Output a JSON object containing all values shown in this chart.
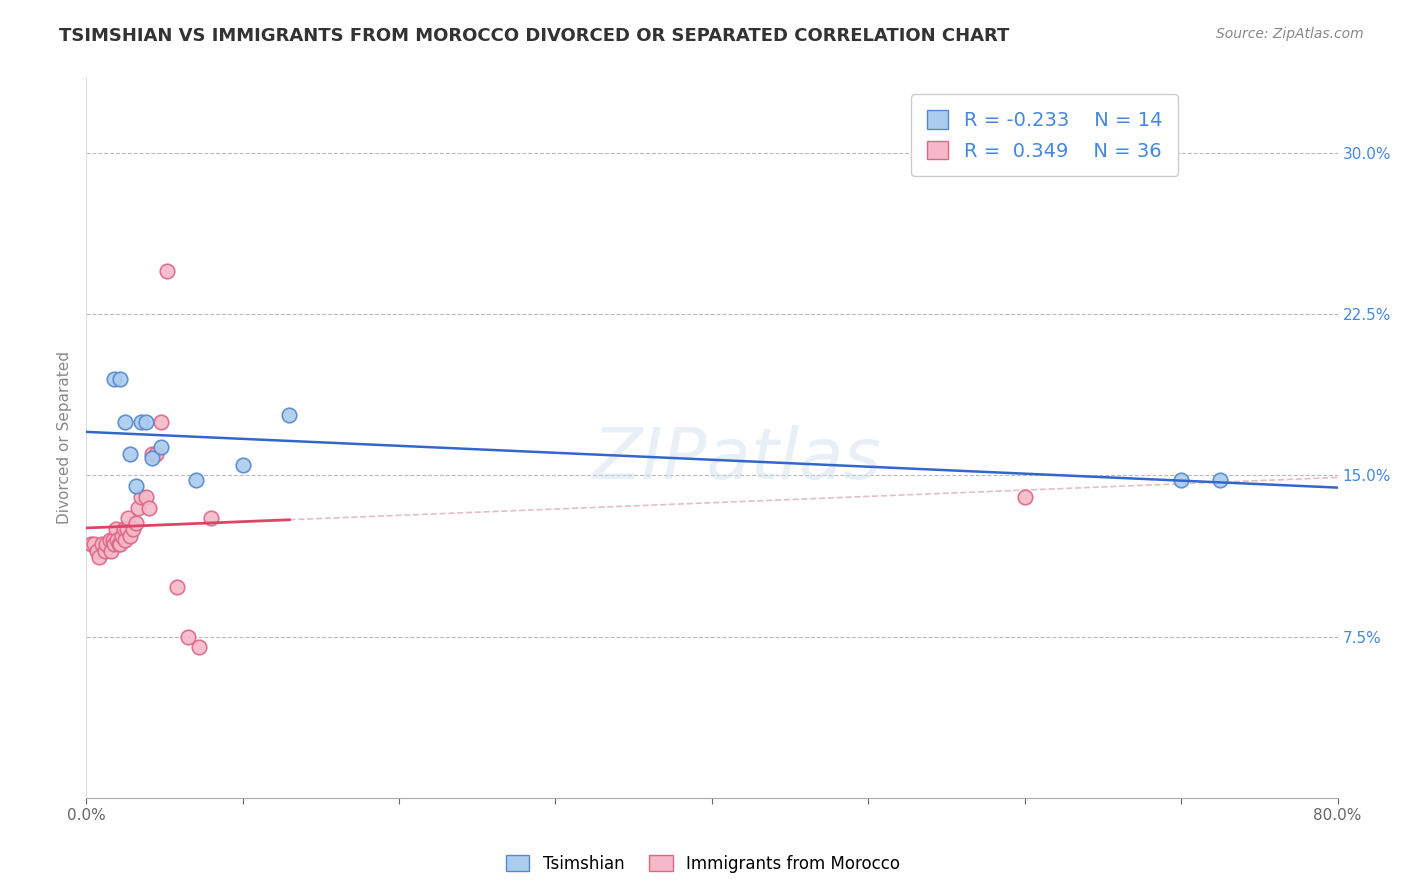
{
  "title": "TSIMSHIAN VS IMMIGRANTS FROM MOROCCO DIVORCED OR SEPARATED CORRELATION CHART",
  "source_text": "Source: ZipAtlas.com",
  "ylabel": "Divorced or Separated",
  "xlim": [
    0.0,
    0.8
  ],
  "ylim": [
    0.0,
    0.335
  ],
  "yticks": [
    0.075,
    0.15,
    0.225,
    0.3
  ],
  "ytick_labels": [
    "7.5%",
    "15.0%",
    "22.5%",
    "30.0%"
  ],
  "xticks": [
    0.0,
    0.1,
    0.2,
    0.3,
    0.4,
    0.5,
    0.6,
    0.7,
    0.8
  ],
  "xtick_labels": [
    "0.0%",
    "",
    "",
    "",
    "",
    "",
    "",
    "",
    "80.0%"
  ],
  "tsimshian_x": [
    0.018,
    0.022,
    0.025,
    0.028,
    0.032,
    0.035,
    0.038,
    0.042,
    0.048,
    0.7,
    0.725,
    0.13,
    0.1,
    0.07
  ],
  "tsimshian_y": [
    0.195,
    0.195,
    0.175,
    0.16,
    0.145,
    0.175,
    0.175,
    0.158,
    0.163,
    0.148,
    0.148,
    0.178,
    0.155,
    0.148
  ],
  "morocco_x": [
    0.003,
    0.005,
    0.007,
    0.008,
    0.01,
    0.012,
    0.013,
    0.015,
    0.016,
    0.017,
    0.018,
    0.019,
    0.02,
    0.021,
    0.022,
    0.023,
    0.024,
    0.025,
    0.026,
    0.027,
    0.028,
    0.03,
    0.032,
    0.033,
    0.035,
    0.038,
    0.04,
    0.042,
    0.045,
    0.048,
    0.052,
    0.058,
    0.065,
    0.072,
    0.08,
    0.6
  ],
  "morocco_y": [
    0.118,
    0.118,
    0.115,
    0.112,
    0.118,
    0.115,
    0.118,
    0.12,
    0.115,
    0.12,
    0.118,
    0.125,
    0.12,
    0.118,
    0.118,
    0.122,
    0.125,
    0.12,
    0.125,
    0.13,
    0.122,
    0.125,
    0.128,
    0.135,
    0.14,
    0.14,
    0.135,
    0.16,
    0.16,
    0.175,
    0.245,
    0.098,
    0.075,
    0.07,
    0.13,
    0.14
  ],
  "tsimshian_color": "#aaccee",
  "morocco_color": "#f5b8c8",
  "tsimshian_edge": "#5588cc",
  "morocco_edge": "#dd6688",
  "blue_line_color": "#3366cc",
  "pink_line_color": "#dd4466",
  "dashed_line_color": "#cc8899",
  "R_tsimshian": "-0.233",
  "N_tsimshian": "14",
  "R_morocco": "0.349",
  "N_morocco": "36",
  "watermark": "ZIPatlas",
  "title_fontsize": 13,
  "label_fontsize": 11,
  "tick_fontsize": 11,
  "legend_fontsize": 14,
  "source_fontsize": 10,
  "marker_size": 110,
  "background_color": "#ffffff",
  "grid_color": "#bbbbbb"
}
